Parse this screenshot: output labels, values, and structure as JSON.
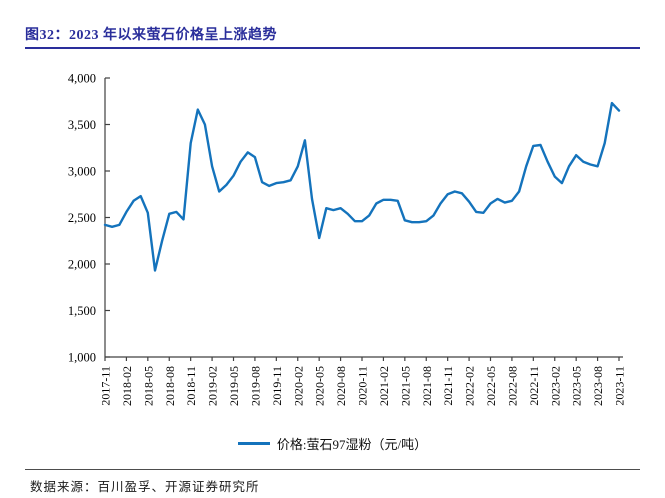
{
  "header": {
    "title": "图32：2023 年以来萤石价格呈上涨趋势"
  },
  "chart_data": {
    "type": "line",
    "title": "图32：2023 年以来萤石价格呈上涨趋势",
    "xlabel": "",
    "ylabel": "",
    "ylim": [
      1000,
      4000
    ],
    "ytick_step": 500,
    "ytick_labels": [
      "1,000",
      "1,500",
      "2,000",
      "2,500",
      "3,000",
      "3,500",
      "4,000"
    ],
    "xtick_every": 3,
    "grid": false,
    "legend_position": "bottom",
    "line_color": "#1473BC",
    "axis_color": "#404040",
    "x": [
      "2017-11",
      "2017-12",
      "2018-01",
      "2018-02",
      "2018-03",
      "2018-04",
      "2018-05",
      "2018-06",
      "2018-07",
      "2018-08",
      "2018-09",
      "2018-10",
      "2018-11",
      "2018-12",
      "2019-01",
      "2019-02",
      "2019-03",
      "2019-04",
      "2019-05",
      "2019-06",
      "2019-07",
      "2019-08",
      "2019-09",
      "2019-10",
      "2019-11",
      "2019-12",
      "2020-01",
      "2020-02",
      "2020-03",
      "2020-04",
      "2020-05",
      "2020-06",
      "2020-07",
      "2020-08",
      "2020-09",
      "2020-10",
      "2020-11",
      "2020-12",
      "2021-01",
      "2021-02",
      "2021-03",
      "2021-04",
      "2021-05",
      "2021-06",
      "2021-07",
      "2021-08",
      "2021-09",
      "2021-10",
      "2021-11",
      "2021-12",
      "2022-01",
      "2022-02",
      "2022-03",
      "2022-04",
      "2022-05",
      "2022-06",
      "2022-07",
      "2022-08",
      "2022-09",
      "2022-10",
      "2022-11",
      "2022-12",
      "2023-01",
      "2023-02",
      "2023-03",
      "2023-04",
      "2023-05",
      "2023-06",
      "2023-07",
      "2023-08",
      "2023-09",
      "2023-10",
      "2023-11"
    ],
    "series": [
      {
        "name": "价格:萤石97湿粉（元/吨）",
        "values": [
          2420,
          2400,
          2420,
          2560,
          2680,
          2730,
          2550,
          1930,
          2250,
          2540,
          2560,
          2480,
          3300,
          3660,
          3500,
          3050,
          2780,
          2850,
          2950,
          3100,
          3200,
          3150,
          2880,
          2840,
          2870,
          2880,
          2900,
          3050,
          3330,
          2700,
          2280,
          2600,
          2580,
          2600,
          2540,
          2460,
          2460,
          2520,
          2650,
          2690,
          2690,
          2680,
          2470,
          2450,
          2450,
          2460,
          2520,
          2650,
          2750,
          2780,
          2760,
          2670,
          2560,
          2550,
          2650,
          2700,
          2660,
          2680,
          2780,
          3050,
          3270,
          3280,
          3100,
          2940,
          2870,
          3050,
          3170,
          3100,
          3070,
          3050,
          3300,
          3730,
          3650
        ]
      }
    ]
  },
  "footer": {
    "source": "数据来源：百川盈孚、开源证券研究所"
  },
  "colors": {
    "title_navy": "#2A2E9B",
    "line_blue": "#1473BC",
    "axis_gray": "#404040"
  }
}
